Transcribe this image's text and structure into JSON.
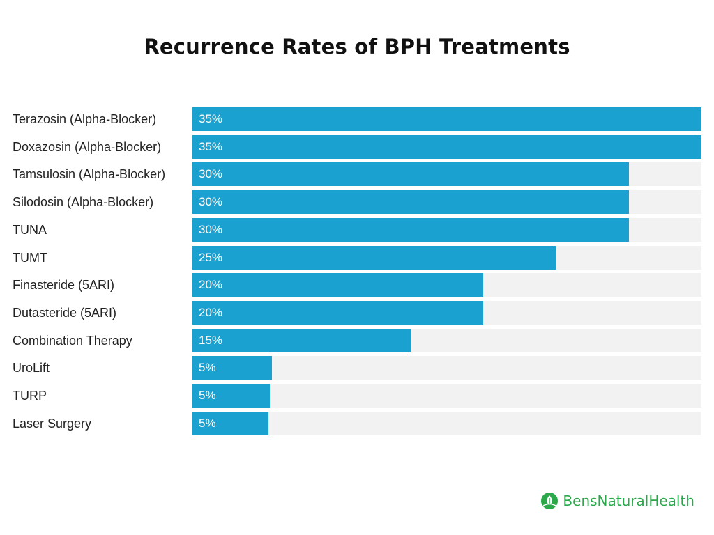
{
  "chart_data": {
    "type": "bar",
    "orientation": "horizontal",
    "title": "Recurrence Rates of BPH Treatments",
    "xlim": [
      0,
      35
    ],
    "grid": false,
    "bar_color": "#1ba1d0",
    "track_color": "#f2f2f2",
    "categories": [
      "Terazosin (Alpha-Blocker)",
      "Doxazosin (Alpha-Blocker)",
      "Tamsulosin (Alpha-Blocker)",
      "Silodosin (Alpha-Blocker)",
      "TUNA",
      "TUMT",
      "Finasteride (5ARI)",
      "Dutasteride (5ARI)",
      "Combination Therapy",
      "UroLift",
      "TURP",
      "Laser Surgery"
    ],
    "values": [
      35,
      35,
      30,
      30,
      30,
      25,
      20,
      20,
      15,
      5,
      5,
      5
    ],
    "value_labels": [
      "35%",
      "35%",
      "30%",
      "30%",
      "30%",
      "25%",
      "20%",
      "20%",
      "15%",
      "5%",
      "5%",
      "5%"
    ]
  },
  "brand": {
    "name": "BensNaturalHealth",
    "color": "#2aa84a",
    "icon": "leaf-drop-icon"
  }
}
